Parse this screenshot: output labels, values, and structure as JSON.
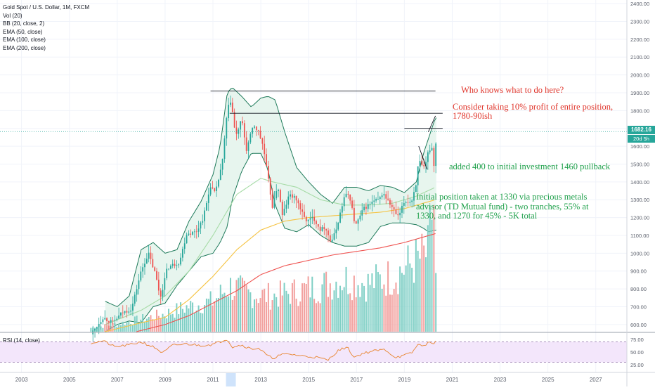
{
  "header": {
    "symbol_title": "Gold Spot / U.S. Dollar, 1M, FXCM",
    "indicators": [
      "Vol (20)",
      "BB (20, close, 2)",
      "EMA (50, close)",
      "EMA (100, close)",
      "EMA (200, close)"
    ]
  },
  "rsi_panel": {
    "label": "RSI (14, close)"
  },
  "badges": {
    "last_price": "1682.16",
    "countdown": "20d 5h"
  },
  "annotations": {
    "who_knows": "Who knows what to do here?",
    "consider_1": "Consider taking 10% profit of entire position,",
    "consider_2": "1780-90ish",
    "added": "added 400 to initial investment 1460 pullback",
    "initial_1": "Initial position taken at 1330 via precious metals",
    "initial_2": "advisor (TD Mutual fund) - two tranches, 55% at",
    "initial_3": "1330, and 1270 for 45% - 5K total"
  },
  "colors": {
    "up_candle": "#26a69a",
    "down_candle": "#ef5350",
    "bb_line": "#1e7a5a",
    "bb_fill": "#e7f5ee",
    "ema50": "#a6dba6",
    "ema100": "#f5c342",
    "ema200": "#ef5350",
    "rsi_line": "#e8852f",
    "rsi_band": "#f3e6fb",
    "annotation_red": "#e0362c",
    "annotation_green": "#1ea04a"
  },
  "chart_data": {
    "type": "candlestick",
    "title": "Gold Spot / U.S. Dollar, 1M, FXCM",
    "price_axis": {
      "ticks": [
        600,
        700,
        800,
        900,
        1000,
        1100,
        1200,
        1300,
        1400,
        1500,
        1600,
        1700,
        1800,
        1900,
        2000,
        2100,
        2200,
        2300,
        2400
      ],
      "tick_labels": [
        "600.00",
        "700.00",
        "800.00",
        "900.00",
        "1000.00",
        "1100.00",
        "1200.00",
        "1300.00",
        "1400.00",
        "1500.00",
        "1600.00",
        "1700.00",
        "1800.00",
        "1900.00",
        "2000.00",
        "2100.00",
        "2200.00",
        "2300.00",
        "2400.00"
      ],
      "range": [
        560,
        2420
      ]
    },
    "time_axis": {
      "ticks": [
        2003,
        2005,
        2007,
        2009,
        2011,
        2013,
        2015,
        2017,
        2019,
        2021,
        2023,
        2025,
        2027
      ],
      "range": [
        2002.1,
        2028.3
      ]
    },
    "rsi_axis": {
      "ticks": [
        25,
        50,
        75
      ],
      "tick_labels": [
        "25.00",
        "50.00",
        "75.00"
      ],
      "overbought": 70,
      "oversold": 30
    },
    "price_anchors": [
      [
        2005.9,
        545
      ],
      [
        2006.4,
        640
      ],
      [
        2006.8,
        610
      ],
      [
        2007.2,
        665
      ],
      [
        2007.6,
        690
      ],
      [
        2008.0,
        900
      ],
      [
        2008.3,
        1000
      ],
      [
        2008.6,
        880
      ],
      [
        2008.8,
        750
      ],
      [
        2009.1,
        920
      ],
      [
        2009.6,
        950
      ],
      [
        2009.9,
        1110
      ],
      [
        2010.3,
        1120
      ],
      [
        2010.6,
        1200
      ],
      [
        2010.9,
        1380
      ],
      [
        2011.1,
        1330
      ],
      [
        2011.4,
        1520
      ],
      [
        2011.6,
        1800
      ],
      [
        2011.75,
        1860
      ],
      [
        2011.95,
        1650
      ],
      [
        2012.2,
        1750
      ],
      [
        2012.4,
        1580
      ],
      [
        2012.7,
        1720
      ],
      [
        2012.9,
        1680
      ],
      [
        2013.1,
        1600
      ],
      [
        2013.3,
        1420
      ],
      [
        2013.5,
        1250
      ],
      [
        2013.7,
        1390
      ],
      [
        2013.9,
        1210
      ],
      [
        2014.2,
        1330
      ],
      [
        2014.5,
        1300
      ],
      [
        2014.8,
        1200
      ],
      [
        2014.95,
        1180
      ],
      [
        2015.2,
        1200
      ],
      [
        2015.5,
        1130
      ],
      [
        2015.7,
        1150
      ],
      [
        2015.92,
        1060
      ],
      [
        2016.1,
        1110
      ],
      [
        2016.5,
        1320
      ],
      [
        2016.7,
        1330
      ],
      [
        2016.95,
        1150
      ],
      [
        2017.3,
        1250
      ],
      [
        2017.7,
        1290
      ],
      [
        2017.95,
        1300
      ],
      [
        2018.1,
        1340
      ],
      [
        2018.6,
        1230
      ],
      [
        2018.75,
        1200
      ],
      [
        2019.0,
        1290
      ],
      [
        2019.3,
        1290
      ],
      [
        2019.5,
        1400
      ],
      [
        2019.6,
        1520
      ],
      [
        2019.8,
        1470
      ],
      [
        2019.95,
        1520
      ],
      [
        2020.0,
        1580
      ],
      [
        2020.15,
        1590
      ],
      [
        2020.25,
        1480
      ],
      [
        2020.35,
        1680
      ]
    ],
    "bollinger_upper_anchors": [
      [
        2006.5,
        730
      ],
      [
        2007.0,
        700
      ],
      [
        2007.5,
        760
      ],
      [
        2008.0,
        1020
      ],
      [
        2008.5,
        1060
      ],
      [
        2009.0,
        1000
      ],
      [
        2009.5,
        1020
      ],
      [
        2010.0,
        1180
      ],
      [
        2010.5,
        1290
      ],
      [
        2011.0,
        1440
      ],
      [
        2011.3,
        1600
      ],
      [
        2011.6,
        1900
      ],
      [
        2011.8,
        1930
      ],
      [
        2012.2,
        1880
      ],
      [
        2012.6,
        1820
      ],
      [
        2013.0,
        1870
      ],
      [
        2013.3,
        1880
      ],
      [
        2013.6,
        1860
      ],
      [
        2014.0,
        1680
      ],
      [
        2014.5,
        1480
      ],
      [
        2015.0,
        1400
      ],
      [
        2015.5,
        1330
      ],
      [
        2016.0,
        1280
      ],
      [
        2016.5,
        1370
      ],
      [
        2017.0,
        1370
      ],
      [
        2017.5,
        1350
      ],
      [
        2018.0,
        1380
      ],
      [
        2018.5,
        1370
      ],
      [
        2019.0,
        1340
      ],
      [
        2019.5,
        1400
      ],
      [
        2019.8,
        1560
      ],
      [
        2020.0,
        1640
      ],
      [
        2020.3,
        1760
      ]
    ],
    "bollinger_lower_anchors": [
      [
        2006.5,
        560
      ],
      [
        2007.0,
        600
      ],
      [
        2007.5,
        620
      ],
      [
        2008.0,
        610
      ],
      [
        2008.5,
        700
      ],
      [
        2009.0,
        720
      ],
      [
        2009.5,
        820
      ],
      [
        2010.0,
        900
      ],
      [
        2010.5,
        980
      ],
      [
        2011.0,
        1000
      ],
      [
        2011.3,
        1060
      ],
      [
        2011.6,
        1150
      ],
      [
        2011.8,
        1300
      ],
      [
        2012.2,
        1460
      ],
      [
        2012.6,
        1560
      ],
      [
        2013.0,
        1560
      ],
      [
        2013.3,
        1470
      ],
      [
        2013.6,
        1270
      ],
      [
        2014.0,
        1140
      ],
      [
        2014.5,
        1120
      ],
      [
        2015.0,
        1160
      ],
      [
        2015.5,
        1100
      ],
      [
        2016.0,
        1060
      ],
      [
        2016.5,
        1040
      ],
      [
        2017.0,
        1040
      ],
      [
        2017.5,
        1060
      ],
      [
        2018.0,
        1150
      ],
      [
        2018.5,
        1170
      ],
      [
        2019.0,
        1170
      ],
      [
        2019.5,
        1160
      ],
      [
        2019.8,
        1140
      ],
      [
        2020.0,
        1120
      ],
      [
        2020.3,
        1130
      ]
    ],
    "ema50_anchors": [
      [
        2006.5,
        600
      ],
      [
        2008.0,
        680
      ],
      [
        2009.0,
        760
      ],
      [
        2010.0,
        900
      ],
      [
        2011.0,
        1100
      ],
      [
        2012.0,
        1330
      ],
      [
        2013.0,
        1420
      ],
      [
        2013.5,
        1400
      ],
      [
        2014.5,
        1370
      ],
      [
        2015.5,
        1300
      ],
      [
        2016.5,
        1270
      ],
      [
        2017.5,
        1270
      ],
      [
        2018.5,
        1280
      ],
      [
        2019.5,
        1320
      ],
      [
        2020.3,
        1370
      ]
    ],
    "ema100_anchors": [
      [
        2006.5,
        560
      ],
      [
        2008.0,
        610
      ],
      [
        2009.0,
        640
      ],
      [
        2010.0,
        740
      ],
      [
        2011.0,
        870
      ],
      [
        2012.0,
        1020
      ],
      [
        2013.0,
        1130
      ],
      [
        2014.0,
        1180
      ],
      [
        2015.0,
        1200
      ],
      [
        2016.0,
        1210
      ],
      [
        2017.0,
        1220
      ],
      [
        2018.0,
        1230
      ],
      [
        2019.0,
        1250
      ],
      [
        2020.3,
        1300
      ]
    ],
    "ema200_anchors": [
      [
        2007.8,
        560
      ],
      [
        2009.0,
        600
      ],
      [
        2010.0,
        650
      ],
      [
        2011.0,
        720
      ],
      [
        2012.0,
        790
      ],
      [
        2013.0,
        880
      ],
      [
        2014.0,
        930
      ],
      [
        2015.0,
        960
      ],
      [
        2016.0,
        990
      ],
      [
        2017.0,
        1010
      ],
      [
        2018.0,
        1030
      ],
      [
        2019.0,
        1060
      ],
      [
        2020.3,
        1110
      ]
    ],
    "rsi_anchors": [
      [
        2005.9,
        68
      ],
      [
        2006.4,
        72
      ],
      [
        2006.9,
        60
      ],
      [
        2007.5,
        64
      ],
      [
        2008.0,
        70
      ],
      [
        2008.6,
        58
      ],
      [
        2008.9,
        48
      ],
      [
        2009.3,
        63
      ],
      [
        2009.9,
        66
      ],
      [
        2010.5,
        63
      ],
      [
        2011.0,
        65
      ],
      [
        2011.6,
        76
      ],
      [
        2011.8,
        60
      ],
      [
        2012.2,
        64
      ],
      [
        2012.6,
        56
      ],
      [
        2012.9,
        58
      ],
      [
        2013.3,
        42
      ],
      [
        2013.5,
        38
      ],
      [
        2013.8,
        44
      ],
      [
        2014.2,
        46
      ],
      [
        2014.8,
        42
      ],
      [
        2015.3,
        40
      ],
      [
        2015.8,
        34
      ],
      [
        2016.2,
        52
      ],
      [
        2016.6,
        60
      ],
      [
        2016.9,
        40
      ],
      [
        2017.3,
        48
      ],
      [
        2017.7,
        52
      ],
      [
        2018.2,
        55
      ],
      [
        2018.6,
        40
      ],
      [
        2018.9,
        42
      ],
      [
        2019.3,
        48
      ],
      [
        2019.6,
        66
      ],
      [
        2019.9,
        62
      ],
      [
        2020.1,
        74
      ],
      [
        2020.2,
        64
      ],
      [
        2020.35,
        72
      ]
    ],
    "volume_anchors": [
      [
        2005.9,
        30
      ],
      [
        2007.0,
        60
      ],
      [
        2008.0,
        100
      ],
      [
        2009.0,
        140
      ],
      [
        2010.0,
        200
      ],
      [
        2011.0,
        240
      ],
      [
        2011.7,
        360
      ],
      [
        2012.5,
        300
      ],
      [
        2013.5,
        280
      ],
      [
        2014.5,
        320
      ],
      [
        2015.5,
        360
      ],
      [
        2016.5,
        420
      ],
      [
        2017.5,
        380
      ],
      [
        2018.5,
        440
      ],
      [
        2019.5,
        560
      ],
      [
        2020.0,
        620
      ],
      [
        2020.22,
        1100
      ],
      [
        2020.35,
        160
      ]
    ],
    "horizontal_lines": [
      {
        "price": 1910,
        "from": 2010.9,
        "to": 2020.3
      },
      {
        "price": 1785,
        "from": 2011.7,
        "to": 2020.6
      },
      {
        "price": 1700,
        "from": 2019.0,
        "to": 2020.6
      }
    ],
    "last_price": 1682.16
  }
}
